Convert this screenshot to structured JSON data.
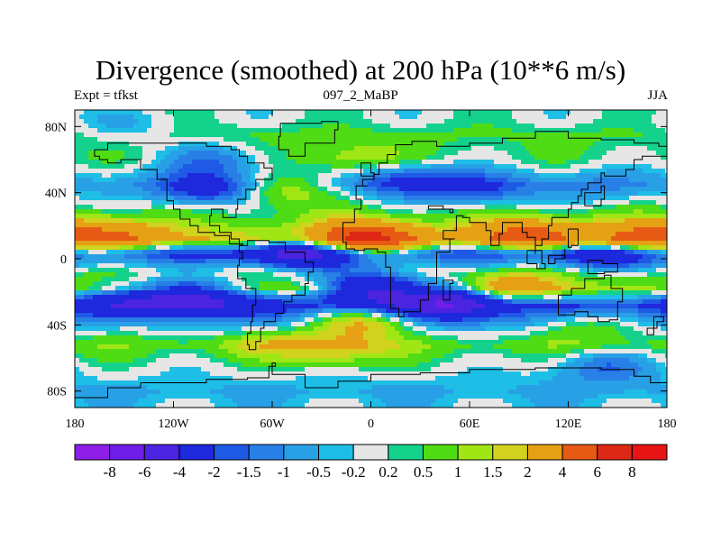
{
  "chart_data": {
    "type": "heatmap",
    "title": "Divergence (smoothed) at 200 hPa (10**6 m/s)",
    "subtitle_left": "Expt = tfkst",
    "subtitle_center": "097_2_MaBP",
    "subtitle_right": "JJA",
    "x_axis": {
      "range": [
        -180,
        180
      ],
      "tick_values": [
        -180,
        -120,
        -60,
        0,
        60,
        120,
        180
      ],
      "tick_labels": [
        "180",
        "120W",
        "60W",
        "0",
        "60E",
        "120E",
        "180"
      ]
    },
    "y_axis": {
      "range": [
        -90,
        90
      ],
      "tick_values": [
        80,
        40,
        0,
        -40,
        -80
      ],
      "tick_labels": [
        "80N",
        "40N",
        "0",
        "40S",
        "80S"
      ]
    },
    "colorbar": {
      "levels": [
        "-8",
        "-6",
        "-4",
        "-2",
        "-1.5",
        "-1",
        "-0.5",
        "-0.2",
        "0.2",
        "0.5",
        "1",
        "1.5",
        "2",
        "4",
        "6",
        "8"
      ],
      "colors": [
        "#8c1ee6",
        "#6e1ee6",
        "#4a24e0",
        "#1e28dc",
        "#1e5ae6",
        "#2880e6",
        "#28a0e6",
        "#1ebee6",
        "#e6e6e6",
        "#14d28c",
        "#50dc14",
        "#a0e614",
        "#d2d21e",
        "#e6a014",
        "#e65a14",
        "#dc2814",
        "#e61414"
      ]
    },
    "zonal_bands": [
      {
        "lat": 85,
        "value": 0.1
      },
      {
        "lat": 75,
        "value": 0.6
      },
      {
        "lat": 60,
        "value": 0.3
      },
      {
        "lat": 45,
        "value": -0.7
      },
      {
        "lat": 32,
        "value": 0.3
      },
      {
        "lat": 22,
        "value": 0.9
      },
      {
        "lat": 12,
        "value": 2.1
      },
      {
        "lat": 3,
        "value": -2.2
      },
      {
        "lat": -8,
        "value": 0.4
      },
      {
        "lat": -18,
        "value": 1.2
      },
      {
        "lat": -28,
        "value": -2.4
      },
      {
        "lat": -40,
        "value": -0.8
      },
      {
        "lat": -52,
        "value": 0.8
      },
      {
        "lat": -65,
        "value": 0.1
      },
      {
        "lat": -80,
        "value": -0.6
      },
      {
        "lat": -88,
        "value": -0.3
      }
    ],
    "anomalies": [
      {
        "lon": -150,
        "lat": 78,
        "value": -0.8
      },
      {
        "lon": -95,
        "lat": 60,
        "value": -1.6
      },
      {
        "lon": -100,
        "lat": 42,
        "value": -2.4
      },
      {
        "lon": -55,
        "lat": 42,
        "value": 1.8
      },
      {
        "lon": -10,
        "lat": 60,
        "value": 1.2
      },
      {
        "lon": 20,
        "lat": 48,
        "value": -1.8
      },
      {
        "lon": 65,
        "lat": 42,
        "value": -1.8
      },
      {
        "lon": 140,
        "lat": 42,
        "value": -0.7
      },
      {
        "lon": -5,
        "lat": 12,
        "value": 5.5
      },
      {
        "lon": 95,
        "lat": 14,
        "value": 3.5
      },
      {
        "lon": 160,
        "lat": 12,
        "value": 3
      },
      {
        "lon": -160,
        "lat": 14,
        "value": 2.5
      },
      {
        "lon": -40,
        "lat": 4,
        "value": -3.5
      },
      {
        "lon": 140,
        "lat": 3,
        "value": -2
      },
      {
        "lon": 0,
        "lat": -18,
        "value": -4.5
      },
      {
        "lon": 50,
        "lat": -25,
        "value": -4.5
      },
      {
        "lon": -110,
        "lat": -22,
        "value": -4
      },
      {
        "lon": -150,
        "lat": -25,
        "value": -1.5
      },
      {
        "lon": 85,
        "lat": -18,
        "value": 2.5
      },
      {
        "lon": -20,
        "lat": -55,
        "value": 1.5
      },
      {
        "lon": -5,
        "lat": -38,
        "value": 2.8
      },
      {
        "lon": 130,
        "lat": -40,
        "value": 1.4
      },
      {
        "lon": -150,
        "lat": -40,
        "value": 0.5
      },
      {
        "lon": 140,
        "lat": -65,
        "value": -1.5
      },
      {
        "lon": -60,
        "lat": -50,
        "value": 1
      }
    ]
  }
}
